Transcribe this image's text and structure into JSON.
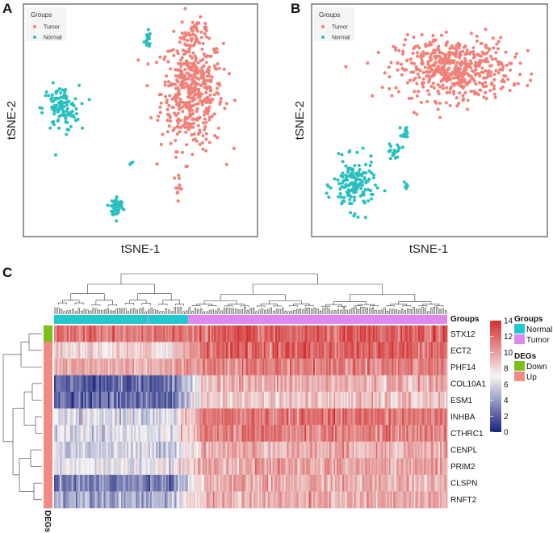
{
  "figure": {
    "panel_a_label": "A",
    "panel_b_label": "B",
    "panel_c_label": "C"
  },
  "colors": {
    "tumor": "#f08078",
    "normal": "#2bbfbf",
    "groups_normal": "#22c7cf",
    "groups_tumor": "#df88f0",
    "degs_down": "#7bbf1a",
    "degs_up": "#f08a85",
    "heat_low": "#1a237e",
    "heat_mid": "#f5f5f5",
    "heat_high": "#d32f2f",
    "panel_bg": "#f2f2f2"
  },
  "chart_data": [
    {
      "type": "scatter",
      "panel": "A",
      "title": "",
      "xlabel": "tSNE-1",
      "ylabel": "tSNE-2",
      "legend": {
        "title": "Groups",
        "position": "top-left",
        "entries": [
          "Tumor",
          "Normal"
        ]
      },
      "series": [
        {
          "name": "Tumor",
          "color_key": "tumor",
          "approx_count": 520,
          "clusters": [
            {
              "center": [
                0.72,
                0.62
              ],
              "spread": [
                0.12,
                0.22
              ],
              "n": 470
            },
            {
              "center": [
                0.74,
                0.88
              ],
              "spread": [
                0.05,
                0.05
              ],
              "n": 40
            },
            {
              "center": [
                0.66,
                0.22
              ],
              "spread": [
                0.02,
                0.05
              ],
              "n": 10
            }
          ]
        },
        {
          "name": "Normal",
          "color_key": "normal",
          "approx_count": 190,
          "clusters": [
            {
              "center": [
                0.16,
                0.55
              ],
              "spread": [
                0.07,
                0.09
              ],
              "n": 110
            },
            {
              "center": [
                0.4,
                0.13
              ],
              "spread": [
                0.025,
                0.04
              ],
              "n": 55
            },
            {
              "center": [
                0.53,
                0.85
              ],
              "spread": [
                0.012,
                0.04
              ],
              "n": 18
            },
            {
              "center": [
                0.46,
                0.32
              ],
              "spread": [
                0.005,
                0.01
              ],
              "n": 4
            }
          ]
        }
      ]
    },
    {
      "type": "scatter",
      "panel": "B",
      "title": "",
      "xlabel": "tSNE-1",
      "ylabel": "tSNE-2",
      "legend": {
        "title": "Groups",
        "position": "top-left",
        "entries": [
          "Tumor",
          "Normal"
        ]
      },
      "series": [
        {
          "name": "Tumor",
          "color_key": "tumor",
          "approx_count": 520,
          "clusters": [
            {
              "center": [
                0.6,
                0.72
              ],
              "spread": [
                0.22,
                0.12
              ],
              "n": 520
            }
          ]
        },
        {
          "name": "Normal",
          "color_key": "normal",
          "approx_count": 200,
          "clusters": [
            {
              "center": [
                0.18,
                0.22
              ],
              "spread": [
                0.08,
                0.1
              ],
              "n": 160
            },
            {
              "center": [
                0.35,
                0.37
              ],
              "spread": [
                0.03,
                0.03
              ],
              "n": 20
            },
            {
              "center": [
                0.4,
                0.45
              ],
              "spread": [
                0.015,
                0.025
              ],
              "n": 14
            },
            {
              "center": [
                0.4,
                0.22
              ],
              "spread": [
                0.008,
                0.015
              ],
              "n": 6
            }
          ]
        }
      ]
    },
    {
      "type": "heatmap",
      "panel": "C",
      "title": "",
      "row_annotation_title": "DEGs",
      "column_annotation_title": "Groups",
      "rows": [
        "STX12",
        "ECT2",
        "PHF14",
        "COL10A1",
        "ESM1",
        "INHBA",
        "CTHRC1",
        "CENPL",
        "PRIM2",
        "CLSPN",
        "RNFT2"
      ],
      "row_degs": [
        "Down",
        "Up",
        "Up",
        "Up",
        "Up",
        "Up",
        "Up",
        "Up",
        "Up",
        "Up",
        "Up"
      ],
      "n_columns": 270,
      "normal_fraction": 0.34,
      "color_scale": {
        "min": 0,
        "max": 14,
        "ticks": [
          0,
          2,
          4,
          6,
          8,
          10,
          12,
          14
        ]
      },
      "mean_values": [
        {
          "gene": "STX12",
          "normal": 11.5,
          "tumor": 12.0
        },
        {
          "gene": "ECT2",
          "normal": 8.0,
          "tumor": 12.2
        },
        {
          "gene": "PHF14",
          "normal": 9.6,
          "tumor": 11.2
        },
        {
          "gene": "COL10A1",
          "normal": 2.2,
          "tumor": 9.4
        },
        {
          "gene": "ESM1",
          "normal": 2.5,
          "tumor": 8.6
        },
        {
          "gene": "INHBA",
          "normal": 6.0,
          "tumor": 11.4
        },
        {
          "gene": "CTHRC1",
          "normal": 6.2,
          "tumor": 11.0
        },
        {
          "gene": "CENPL",
          "normal": 5.8,
          "tumor": 9.6
        },
        {
          "gene": "PRIM2",
          "normal": 6.6,
          "tumor": 9.8
        },
        {
          "gene": "CLSPN",
          "normal": 3.2,
          "tumor": 9.4
        },
        {
          "gene": "RNFT2",
          "normal": 4.8,
          "tumor": 9.4
        }
      ],
      "legends": {
        "groups": {
          "title": "Groups",
          "entries": [
            "Normal",
            "Tumor"
          ]
        },
        "degs": {
          "title": "DEGs",
          "entries": [
            "Down",
            "Up"
          ]
        }
      },
      "column_annotation_label": "Groups",
      "row_annotation_label": "DEGs"
    }
  ]
}
